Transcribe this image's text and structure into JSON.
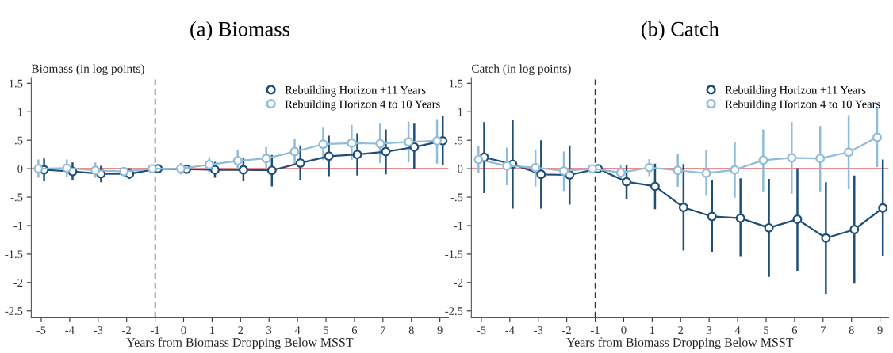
{
  "chart_data": [
    {
      "type": "line",
      "title": "(a) Biomass",
      "ylabel": "Biomass (in log points)",
      "xlabel": "Years from Biomass Dropping Below MSST",
      "xlim": [
        -5.35,
        9.3
      ],
      "xticks": [
        -5,
        -4,
        -3,
        -2,
        -1,
        0,
        1,
        2,
        3,
        4,
        5,
        6,
        7,
        8,
        9
      ],
      "ylim": [
        -2.62,
        1.6
      ],
      "yticks": [
        {
          "value": -2.5,
          "label": "-2.5"
        },
        {
          "value": -2,
          "label": "-2"
        },
        {
          "value": -1.5,
          "label": "-1.5"
        },
        {
          "value": -1,
          "label": "-1"
        },
        {
          "value": -0.5,
          "label": "-.5"
        },
        {
          "value": 0,
          "label": "0"
        },
        {
          "value": 0.5,
          "label": ".5"
        },
        {
          "value": 1,
          "label": "1"
        },
        {
          "value": 1.5,
          "label": "1.5"
        }
      ],
      "marker": "circle",
      "line_style": "solid",
      "legend": "top right",
      "grid": false,
      "ref_lines": [
        {
          "axis": "y",
          "value": 0,
          "color": "#e06666",
          "line_style": "solid"
        },
        {
          "axis": "x",
          "value": -1,
          "color": "#333333",
          "line_style": "dashed"
        }
      ],
      "series": [
        {
          "name": "Rebuilding Horizon +11 Years",
          "color": "#1f4e79",
          "x": [
            -4.9,
            -3.9,
            -2.9,
            -1.9,
            -0.9,
            0.1,
            1.1,
            2.1,
            3.1,
            4.1,
            5.1,
            6.1,
            7.1,
            8.1,
            9.1
          ],
          "values": [
            -0.02,
            -0.05,
            -0.09,
            -0.09,
            0,
            -0.01,
            -0.02,
            -0.02,
            -0.03,
            0.1,
            0.22,
            0.25,
            0.3,
            0.38,
            0.49
          ],
          "errors": [
            [
              -0.22,
              0.18
            ],
            [
              -0.2,
              0.11
            ],
            [
              -0.24,
              0.05
            ],
            [
              -0.18,
              0.01
            ],
            null,
            [
              -0.08,
              0.07
            ],
            [
              -0.16,
              0.12
            ],
            [
              -0.22,
              0.19
            ],
            [
              -0.31,
              0.24
            ],
            [
              -0.2,
              0.41
            ],
            [
              -0.13,
              0.58
            ],
            [
              -0.12,
              0.62
            ],
            [
              -0.1,
              0.69
            ],
            [
              0,
              0.79
            ],
            [
              0.06,
              0.93
            ]
          ]
        },
        {
          "name": "Rebuilding Horizon 4 to 10 Years",
          "color": "#8fbcd9",
          "x": [
            -5.1,
            -4.1,
            -3.1,
            -2.1,
            -1.1,
            -0.1,
            0.9,
            1.9,
            2.9,
            3.9,
            4.9,
            5.9,
            6.9,
            7.9,
            8.9
          ],
          "values": [
            0,
            0.01,
            -0.03,
            -0.05,
            0,
            0,
            0.07,
            0.14,
            0.18,
            0.3,
            0.43,
            0.45,
            0.44,
            0.47,
            0.49
          ],
          "errors": [
            [
              -0.16,
              0.16
            ],
            [
              -0.14,
              0.16
            ],
            [
              -0.16,
              0.11
            ],
            [
              -0.13,
              0.03
            ],
            null,
            [
              -0.1,
              0.1
            ],
            [
              -0.06,
              0.2
            ],
            [
              -0.03,
              0.32
            ],
            [
              0.01,
              0.38
            ],
            [
              0.08,
              0.53
            ],
            [
              0.15,
              0.72
            ],
            [
              0.15,
              0.77
            ],
            [
              0.1,
              0.79
            ],
            [
              0.11,
              0.83
            ],
            [
              0.09,
              0.87
            ]
          ]
        }
      ]
    },
    {
      "type": "line",
      "title": "(b) Catch",
      "ylabel": "Catch (in log points)",
      "xlabel": "Years from Biomass Dropping Below MSST",
      "xlim": [
        -5.35,
        9.3
      ],
      "xticks": [
        -5,
        -4,
        -3,
        -2,
        -1,
        0,
        1,
        2,
        3,
        4,
        5,
        6,
        7,
        8,
        9
      ],
      "ylim": [
        -2.62,
        1.6
      ],
      "yticks": [
        {
          "value": -2.5,
          "label": "-2.5"
        },
        {
          "value": -2,
          "label": "-2"
        },
        {
          "value": -1.5,
          "label": "-1.5"
        },
        {
          "value": -1,
          "label": "-1"
        },
        {
          "value": -0.5,
          "label": "-.5"
        },
        {
          "value": 0,
          "label": "0"
        },
        {
          "value": 0.5,
          "label": ".5"
        },
        {
          "value": 1,
          "label": "1"
        },
        {
          "value": 1.5,
          "label": "1.5"
        }
      ],
      "marker": "circle",
      "line_style": "solid",
      "legend": "top right",
      "grid": false,
      "ref_lines": [
        {
          "axis": "y",
          "value": 0,
          "color": "#e06666",
          "line_style": "solid"
        },
        {
          "axis": "x",
          "value": -1,
          "color": "#333333",
          "line_style": "dashed"
        }
      ],
      "series": [
        {
          "name": "Rebuilding Horizon +11 Years",
          "color": "#1f4e79",
          "x": [
            -4.9,
            -3.9,
            -2.9,
            -1.9,
            -0.9,
            0.1,
            1.1,
            2.1,
            3.1,
            4.1,
            5.1,
            6.1,
            7.1,
            8.1,
            9.1
          ],
          "values": [
            0.2,
            0.08,
            -0.1,
            -0.11,
            0,
            -0.23,
            -0.31,
            -0.68,
            -0.84,
            -0.87,
            -1.04,
            -0.89,
            -1.22,
            -1.07,
            -0.69
          ],
          "errors": [
            [
              -0.43,
              0.82
            ],
            [
              -0.7,
              0.85
            ],
            [
              -0.7,
              0.5
            ],
            [
              -0.63,
              0.41
            ],
            null,
            [
              -0.54,
              0.07
            ],
            [
              -0.71,
              0.09
            ],
            [
              -1.44,
              0.08
            ],
            [
              -1.47,
              -0.2
            ],
            [
              -1.55,
              -0.17
            ],
            [
              -1.9,
              -0.18
            ],
            [
              -1.8,
              0.01
            ],
            [
              -2.2,
              -0.24
            ],
            [
              -2.02,
              -0.12
            ],
            [
              -1.53,
              0.16
            ]
          ]
        },
        {
          "name": "Rebuilding Horizon 4 to 10 Years",
          "color": "#8fbcd9",
          "x": [
            -5.1,
            -4.1,
            -3.1,
            -2.1,
            -1.1,
            -0.1,
            0.9,
            1.9,
            2.9,
            3.9,
            4.9,
            5.9,
            6.9,
            7.9,
            8.9
          ],
          "values": [
            0.16,
            0.05,
            0.02,
            -0.04,
            0,
            -0.07,
            0.02,
            -0.03,
            -0.08,
            -0.02,
            0.15,
            0.19,
            0.18,
            0.29,
            0.55
          ],
          "errors": [
            [
              -0.08,
              0.39
            ],
            [
              -0.29,
              0.37
            ],
            [
              -0.31,
              0.34
            ],
            [
              -0.39,
              0.3
            ],
            null,
            [
              -0.2,
              0.07
            ],
            [
              -0.13,
              0.17
            ],
            [
              -0.32,
              0.26
            ],
            [
              -0.48,
              0.32
            ],
            [
              -0.51,
              0.46
            ],
            [
              -0.4,
              0.69
            ],
            [
              -0.44,
              0.82
            ],
            [
              -0.4,
              0.75
            ],
            [
              -0.36,
              0.94
            ],
            [
              0.03,
              1.07
            ]
          ]
        }
      ]
    }
  ]
}
